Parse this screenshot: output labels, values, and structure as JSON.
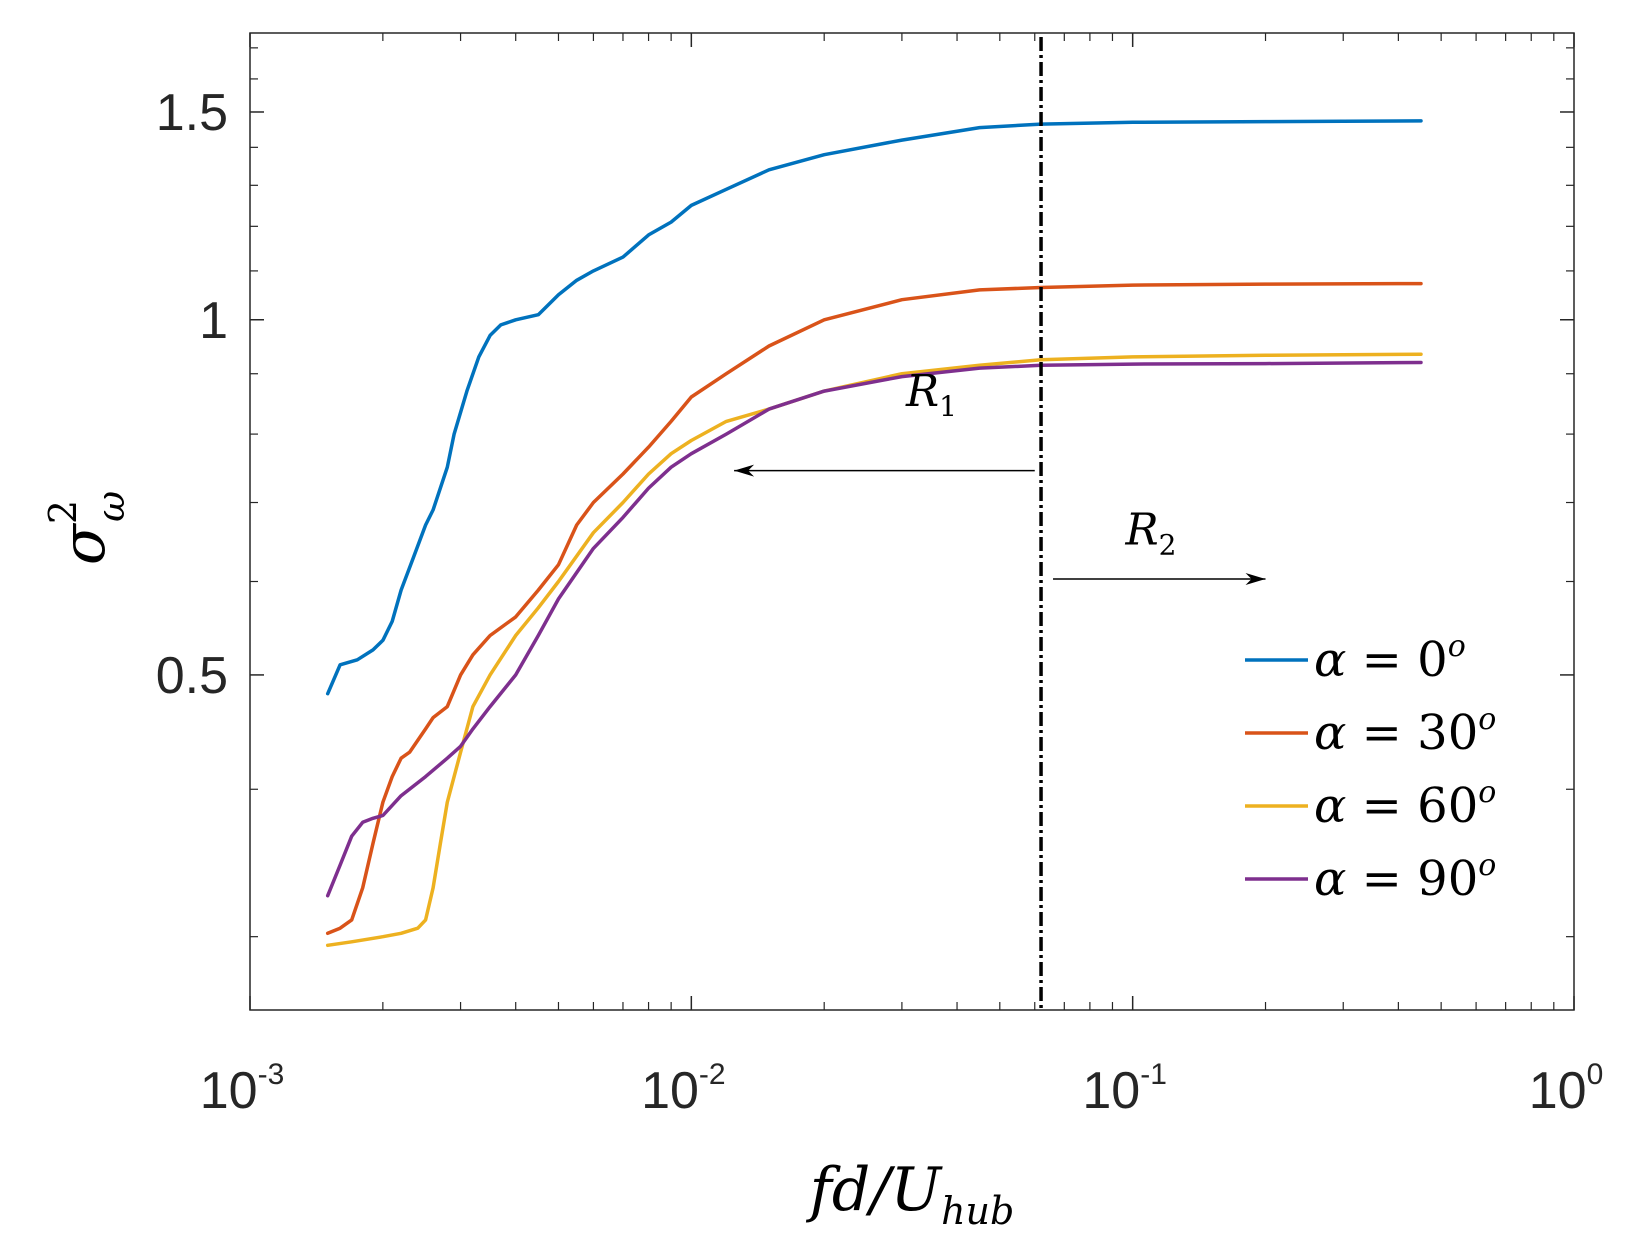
{
  "chart_data": {
    "type": "line",
    "xscale": "log",
    "yscale": "log",
    "xlim": [
      0.001,
      1
    ],
    "ylim": [
      0.26,
      1.75
    ],
    "xlabel": "fd/U_hub",
    "xlabel_parts": {
      "main": "fd/U",
      "sub": "hub"
    },
    "ylabel_parts": {
      "main": "σ",
      "sup": "2",
      "sub": "ω"
    },
    "x_ticks": [
      {
        "value": 0.001,
        "base": "10",
        "exp": "-3"
      },
      {
        "value": 0.01,
        "base": "10",
        "exp": "-2"
      },
      {
        "value": 0.1,
        "base": "10",
        "exp": "-1"
      },
      {
        "value": 1,
        "base": "10",
        "exp": "0"
      }
    ],
    "y_ticks": [
      {
        "value": 0.5,
        "label": "0.5"
      },
      {
        "value": 1.0,
        "label": "1"
      },
      {
        "value": 1.5,
        "label": "1.5"
      }
    ],
    "y_minor_ticks": [
      0.3,
      0.4,
      0.6,
      0.7,
      0.8,
      0.9,
      1.1,
      1.2,
      1.3,
      1.4,
      1.6,
      1.7
    ],
    "vline_x": 0.062,
    "annotations": [
      {
        "label_main": "R",
        "label_sub": "1",
        "text_x": 0.035,
        "text_y": 0.845,
        "arrow_from": 0.06,
        "arrow_to": 0.0125,
        "arrow_y": 0.745
      },
      {
        "label_main": "R",
        "label_sub": "2",
        "text_x": 0.11,
        "text_y": 0.645,
        "arrow_from": 0.066,
        "arrow_to": 0.2,
        "arrow_y": 0.603
      }
    ],
    "legend_position": "bottom-right",
    "series": [
      {
        "name": "α = 0°",
        "label_alpha": "α",
        "label_eq": "=",
        "label_num": "0",
        "label_sup": "o",
        "color": "#0072bd",
        "x": [
          0.0015,
          0.0016,
          0.00175,
          0.0019,
          0.002,
          0.0021,
          0.0022,
          0.00235,
          0.0025,
          0.0026,
          0.0028,
          0.0029,
          0.0031,
          0.0033,
          0.0035,
          0.0037,
          0.004,
          0.0045,
          0.005,
          0.0055,
          0.006,
          0.007,
          0.008,
          0.009,
          0.01,
          0.012,
          0.015,
          0.02,
          0.03,
          0.045,
          0.062,
          0.1,
          0.2,
          0.3,
          0.45
        ],
        "y": [
          0.482,
          0.51,
          0.515,
          0.525,
          0.535,
          0.555,
          0.59,
          0.63,
          0.67,
          0.69,
          0.75,
          0.8,
          0.87,
          0.93,
          0.97,
          0.99,
          1.0,
          1.01,
          1.05,
          1.08,
          1.1,
          1.13,
          1.18,
          1.21,
          1.25,
          1.29,
          1.34,
          1.38,
          1.42,
          1.455,
          1.465,
          1.47,
          1.472,
          1.473,
          1.474
        ]
      },
      {
        "name": "α = 30°",
        "label_alpha": "α",
        "label_eq": "=",
        "label_num": "30",
        "label_sup": "o",
        "color": "#d95319",
        "x": [
          0.0015,
          0.0016,
          0.0017,
          0.0018,
          0.0019,
          0.002,
          0.0021,
          0.0022,
          0.0023,
          0.0025,
          0.0026,
          0.0028,
          0.003,
          0.0032,
          0.0035,
          0.004,
          0.0045,
          0.005,
          0.0055,
          0.006,
          0.007,
          0.008,
          0.009,
          0.01,
          0.012,
          0.015,
          0.02,
          0.03,
          0.045,
          0.062,
          0.1,
          0.2,
          0.45
        ],
        "y": [
          0.302,
          0.305,
          0.31,
          0.33,
          0.36,
          0.39,
          0.41,
          0.425,
          0.43,
          0.45,
          0.46,
          0.47,
          0.5,
          0.52,
          0.54,
          0.56,
          0.59,
          0.62,
          0.67,
          0.7,
          0.74,
          0.78,
          0.82,
          0.86,
          0.9,
          0.95,
          1.0,
          1.04,
          1.06,
          1.065,
          1.07,
          1.072,
          1.073
        ]
      },
      {
        "name": "α = 60°",
        "label_alpha": "α",
        "label_eq": "=",
        "label_num": "60",
        "label_sup": "o",
        "color": "#edb120",
        "x": [
          0.0015,
          0.0017,
          0.002,
          0.0022,
          0.0024,
          0.0025,
          0.0026,
          0.0027,
          0.0028,
          0.003,
          0.0032,
          0.0035,
          0.004,
          0.0045,
          0.005,
          0.006,
          0.007,
          0.008,
          0.009,
          0.01,
          0.012,
          0.015,
          0.02,
          0.03,
          0.045,
          0.062,
          0.1,
          0.2,
          0.45
        ],
        "y": [
          0.295,
          0.297,
          0.3,
          0.302,
          0.305,
          0.31,
          0.33,
          0.36,
          0.39,
          0.43,
          0.47,
          0.5,
          0.54,
          0.57,
          0.6,
          0.66,
          0.7,
          0.74,
          0.77,
          0.79,
          0.82,
          0.84,
          0.87,
          0.9,
          0.915,
          0.925,
          0.93,
          0.933,
          0.935
        ]
      },
      {
        "name": "α = 90°",
        "label_alpha": "α",
        "label_eq": "=",
        "label_num": "90",
        "label_sup": "o",
        "color": "#7e2f8e",
        "x": [
          0.0015,
          0.0016,
          0.0017,
          0.0018,
          0.0019,
          0.002,
          0.0022,
          0.0025,
          0.0028,
          0.003,
          0.0032,
          0.0035,
          0.004,
          0.0045,
          0.005,
          0.006,
          0.007,
          0.008,
          0.009,
          0.01,
          0.012,
          0.015,
          0.02,
          0.03,
          0.045,
          0.062,
          0.1,
          0.2,
          0.45
        ],
        "y": [
          0.325,
          0.345,
          0.365,
          0.375,
          0.378,
          0.38,
          0.395,
          0.41,
          0.425,
          0.435,
          0.45,
          0.47,
          0.5,
          0.54,
          0.58,
          0.64,
          0.68,
          0.72,
          0.75,
          0.77,
          0.8,
          0.84,
          0.87,
          0.895,
          0.91,
          0.915,
          0.917,
          0.918,
          0.92
        ]
      }
    ]
  }
}
